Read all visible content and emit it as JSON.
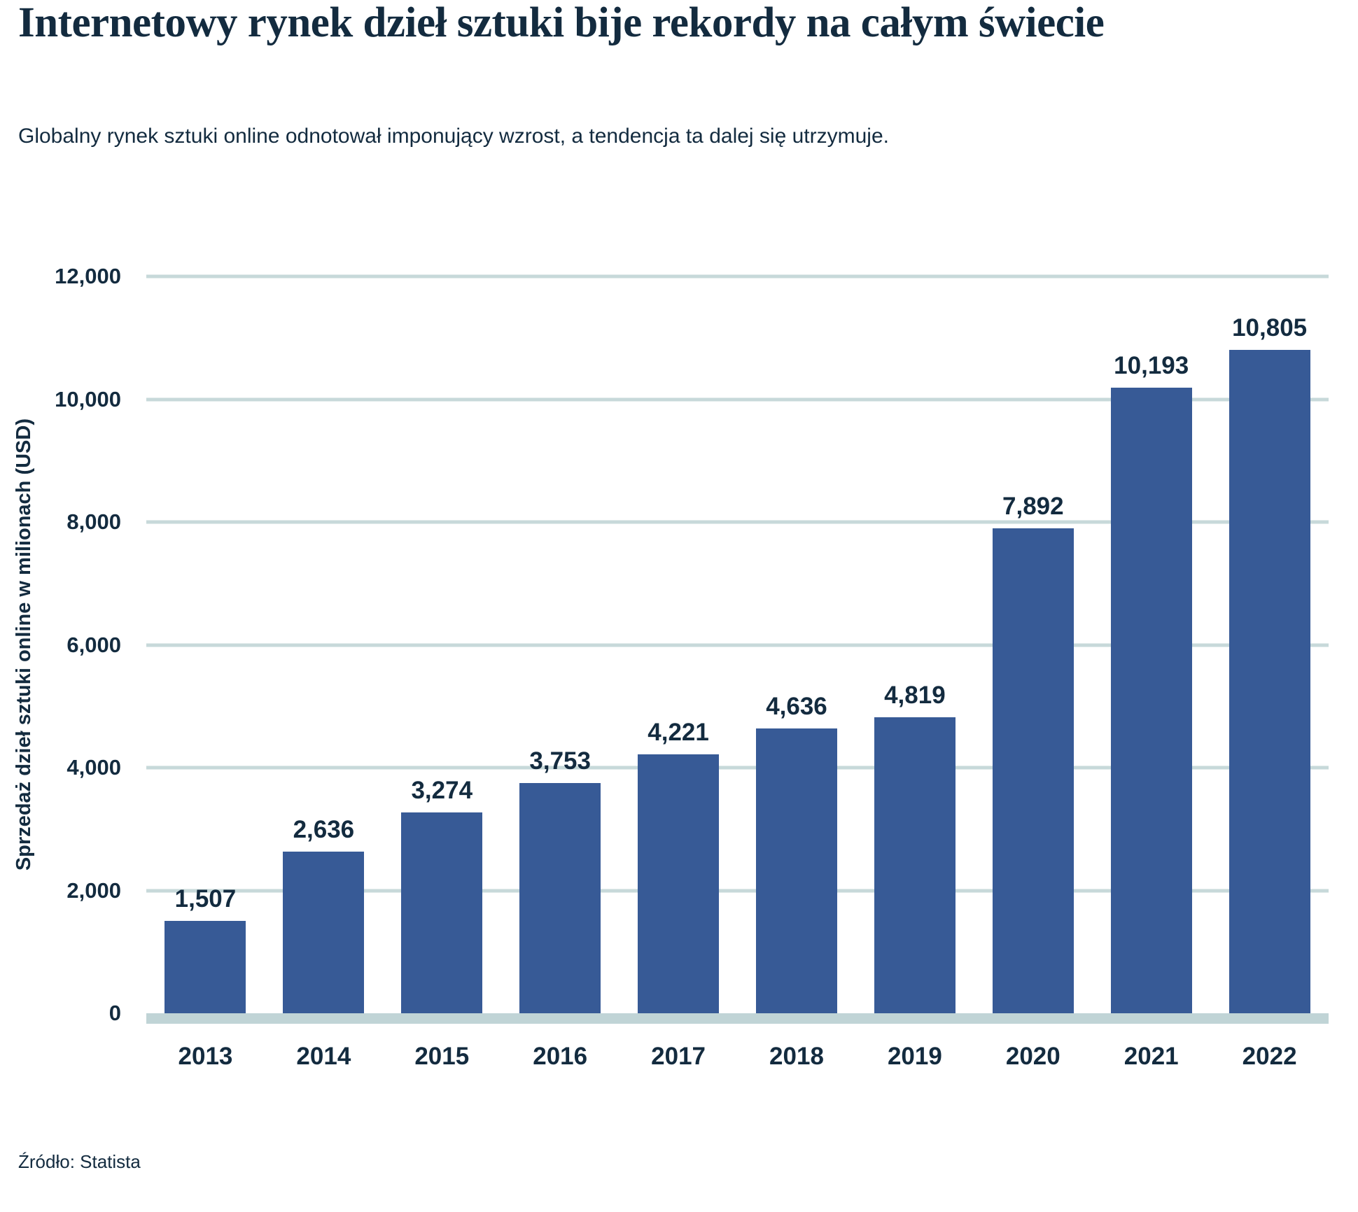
{
  "header": {
    "title": "Internetowy rynek dzieł sztuki bije rekordy na całym świecie",
    "subtitle": "Globalny rynek sztuki online odnotował imponujący wzrost, a tendencja ta dalej się utrzymuje."
  },
  "chart_data": {
    "type": "bar",
    "title": "Internetowy rynek dzieł sztuki bije rekordy na całym świecie",
    "subtitle": "Globalny rynek sztuki online odnotował imponujący wzrost, a tendencja ta dalej się utrzymuje.",
    "categories": [
      "2013",
      "2014",
      "2015",
      "2016",
      "2017",
      "2018",
      "2019",
      "2020",
      "2021",
      "2022"
    ],
    "values": [
      1507,
      2636,
      3274,
      3753,
      4221,
      4636,
      4819,
      7892,
      10193,
      10805
    ],
    "value_labels": [
      "1,507",
      "2,636",
      "3,274",
      "3,753",
      "4,221",
      "4,636",
      "4,819",
      "7,892",
      "10,193",
      "10,805"
    ],
    "xlabel": "",
    "ylabel": "Sprzedaż dzieł sztuki online w milionach (USD)",
    "ylim": [
      0,
      12000
    ],
    "yticks": [
      0,
      2000,
      4000,
      6000,
      8000,
      10000,
      12000
    ],
    "ytick_labels": [
      "0",
      "2,000",
      "4,000",
      "6,000",
      "8,000",
      "10,000",
      "12,000"
    ],
    "grid": "horizontal",
    "legend": "none",
    "bar_color": "#375A96"
  },
  "source": {
    "label": "Źródło: Statista"
  },
  "colors": {
    "bar": "#375A96",
    "gridline": "#C7D9DA",
    "baseline": "#C0D4D6",
    "text": "#132B3F",
    "background": "#FFFFFF"
  }
}
